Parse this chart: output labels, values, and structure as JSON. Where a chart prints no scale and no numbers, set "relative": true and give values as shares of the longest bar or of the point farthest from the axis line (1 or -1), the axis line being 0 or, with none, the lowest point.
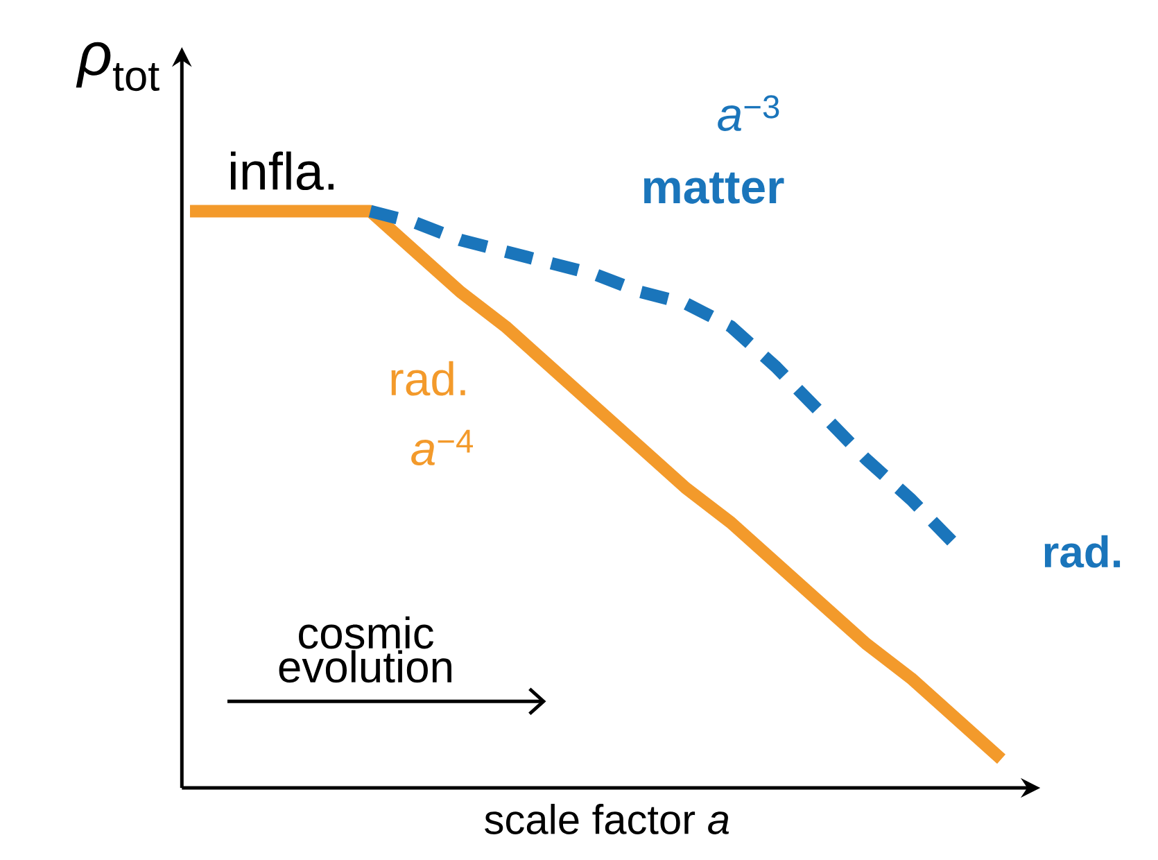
{
  "chart_data": {
    "type": "line",
    "relative": true,
    "xlabel": "scale factor *a*",
    "ylabel": "*ρ*$_{tot}$",
    "categories": [
      null,
      null,
      null,
      null,
      null,
      null,
      null,
      null,
      null,
      null,
      null,
      null,
      null,
      null,
      null,
      null,
      null,
      null,
      null
    ],
    "series": [
      {
        "values": [
          1,
          1,
          1,
          1,
          1,
          0.93,
          0.86,
          0.8,
          0.73,
          0.66,
          0.59,
          0.52,
          0.46,
          0.39,
          0.32,
          0.25,
          0.19,
          0.12,
          0.05
        ],
        "color": "#f39a2b",
        "line_style": "solid"
      },
      {
        "values": [
          null,
          null,
          null,
          null,
          1,
          0.98,
          0.95,
          0.93,
          0.91,
          0.89,
          0.86,
          0.84,
          0.8,
          0.73,
          0.65,
          0.57,
          0.5,
          0.42,
          null
        ],
        "color": "#1a75bb",
        "line_style": "dashed"
      }
    ],
    "annotations": [
      "infla.",
      "*a*$^{−3}$",
      "**matter**",
      "rad.",
      "*a*$^{−4}$",
      "**rad.**",
      "cosmic evolution"
    ]
  }
}
